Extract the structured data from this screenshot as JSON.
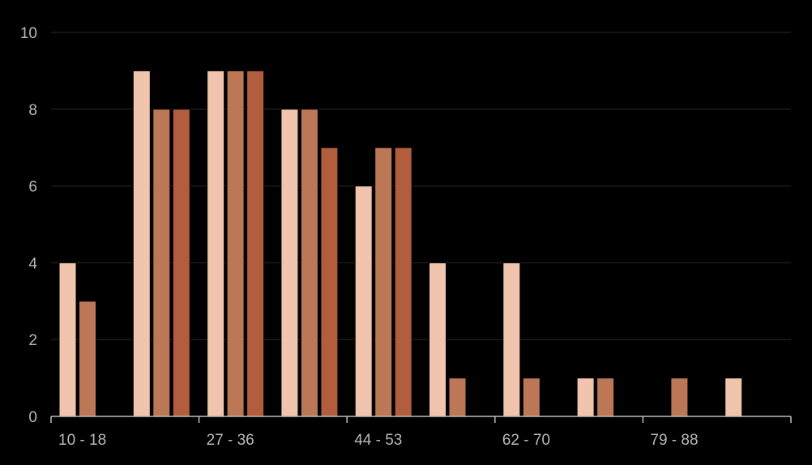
{
  "chart_data": {
    "type": "bar",
    "title": "",
    "xlabel": "",
    "ylabel": "",
    "ylim": [
      0,
      10
    ],
    "yticks": [
      0,
      2,
      4,
      6,
      8,
      10
    ],
    "grid": true,
    "categories": [
      "10 - 18",
      "",
      "27 - 36",
      "",
      "44 - 53",
      "",
      "62 - 70",
      "",
      "79 - 88",
      ""
    ],
    "x_tick_labels": [
      "10 - 18",
      "27 - 36",
      "44 - 53",
      "62 - 70",
      "79 - 88"
    ],
    "series": [
      {
        "color": "#f0c4ad",
        "values": [
          4,
          9,
          9,
          8,
          6,
          4,
          4,
          1,
          0,
          1
        ]
      },
      {
        "color": "#bc7757",
        "values": [
          3,
          8,
          9,
          8,
          7,
          1,
          1,
          1,
          1,
          0
        ]
      },
      {
        "color": "#b25d3e",
        "values": [
          0,
          8,
          9,
          7,
          7,
          0,
          0,
          0,
          0,
          0
        ]
      }
    ]
  }
}
